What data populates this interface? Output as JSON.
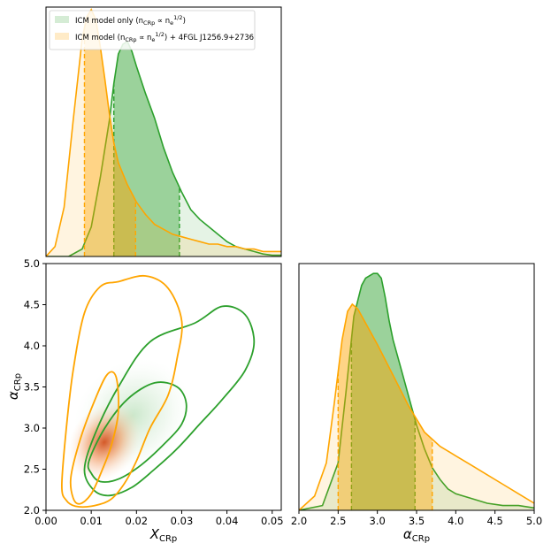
{
  "chart_data": [
    {
      "type": "area",
      "panel": "marginal-x",
      "x_range": [
        0.0,
        0.052
      ],
      "legend": {
        "placement": "top-left",
        "entries": [
          {
            "label": "ICM model only (n_CRp ∝ n_e^1/2)",
            "label_main": "ICM model only (n",
            "label_sub": "CRp",
            "label_mid": " ∝ n",
            "label_sub2": "e",
            "label_sup": "1/2",
            "label_tail": ")",
            "color": "#2ca02c"
          },
          {
            "label": "ICM model (n_CRp ∝ n_e^1/2) + 4FGL J1256.9+2736",
            "label_main": "ICM model (n",
            "label_sub": "CRp",
            "label_mid": " ∝ n",
            "label_sub2": "e",
            "label_sup": "1/2",
            "label_tail": ") + 4FGL J1256.9+2736",
            "color": "#ffa500"
          }
        ]
      },
      "series": [
        {
          "name": "ICM model only",
          "color": "#2ca02c",
          "x": [
            0.0,
            0.005,
            0.008,
            0.01,
            0.012,
            0.014,
            0.015,
            0.016,
            0.017,
            0.018,
            0.019,
            0.02,
            0.022,
            0.024,
            0.026,
            0.028,
            0.03,
            0.032,
            0.034,
            0.036,
            0.038,
            0.04,
            0.042,
            0.044,
            0.046,
            0.048,
            0.05,
            0.052
          ],
          "y": [
            0.0,
            0.0,
            0.03,
            0.12,
            0.32,
            0.55,
            0.7,
            0.82,
            0.86,
            0.87,
            0.83,
            0.77,
            0.66,
            0.56,
            0.44,
            0.34,
            0.26,
            0.19,
            0.15,
            0.12,
            0.09,
            0.06,
            0.04,
            0.03,
            0.02,
            0.01,
            0.005,
            0.005
          ],
          "credible_interval": [
            0.015,
            0.0295
          ]
        },
        {
          "name": "ICM model + 4FGL J1256.9+2736",
          "color": "#ffa500",
          "x": [
            0.0,
            0.002,
            0.004,
            0.006,
            0.008,
            0.009,
            0.01,
            0.011,
            0.012,
            0.013,
            0.014,
            0.015,
            0.016,
            0.018,
            0.02,
            0.022,
            0.024,
            0.026,
            0.028,
            0.03,
            0.032,
            0.034,
            0.036,
            0.038,
            0.04,
            0.042,
            0.044,
            0.046,
            0.048,
            0.05,
            0.052
          ],
          "y": [
            0.0,
            0.04,
            0.2,
            0.55,
            0.88,
            0.97,
            1.0,
            0.96,
            0.85,
            0.72,
            0.58,
            0.46,
            0.38,
            0.29,
            0.22,
            0.17,
            0.13,
            0.11,
            0.09,
            0.08,
            0.07,
            0.06,
            0.05,
            0.05,
            0.04,
            0.04,
            0.03,
            0.03,
            0.02,
            0.02,
            0.02
          ],
          "credible_interval": [
            0.0085,
            0.0198
          ]
        }
      ]
    },
    {
      "type": "area",
      "panel": "marginal-alpha",
      "xlabel": "α_CRp",
      "x_range": [
        2.0,
        5.0
      ],
      "x_ticks": [
        "2.0",
        "2.5",
        "3.0",
        "3.5",
        "4.0",
        "4.5",
        "5.0"
      ],
      "series": [
        {
          "name": "ICM model only",
          "color": "#2ca02c",
          "x": [
            2.0,
            2.3,
            2.5,
            2.6,
            2.7,
            2.8,
            2.85,
            2.9,
            2.95,
            3.0,
            3.05,
            3.1,
            3.15,
            3.2,
            3.3,
            3.4,
            3.5,
            3.6,
            3.7,
            3.8,
            3.9,
            4.0,
            4.2,
            4.4,
            4.6,
            4.8,
            5.0
          ],
          "y": [
            0.0,
            0.02,
            0.2,
            0.5,
            0.82,
            0.95,
            0.98,
            0.99,
            1.0,
            1.0,
            0.98,
            0.9,
            0.8,
            0.72,
            0.6,
            0.48,
            0.36,
            0.26,
            0.18,
            0.13,
            0.09,
            0.07,
            0.05,
            0.03,
            0.02,
            0.02,
            0.01
          ],
          "credible_interval": [
            2.67,
            3.48
          ]
        },
        {
          "name": "ICM model + 4FGL J1256.9+2736",
          "color": "#ffa500",
          "x": [
            2.0,
            2.2,
            2.35,
            2.45,
            2.55,
            2.62,
            2.68,
            2.75,
            2.85,
            3.0,
            3.2,
            3.4,
            3.6,
            3.8,
            4.0,
            4.2,
            4.4,
            4.6,
            4.8,
            5.0
          ],
          "y": [
            0.0,
            0.06,
            0.2,
            0.45,
            0.72,
            0.84,
            0.87,
            0.85,
            0.79,
            0.7,
            0.57,
            0.44,
            0.33,
            0.27,
            0.23,
            0.19,
            0.15,
            0.11,
            0.07,
            0.03
          ],
          "credible_interval": [
            2.5,
            3.7
          ]
        }
      ]
    },
    {
      "type": "scatter",
      "panel": "joint",
      "description_type": "2D credible contours",
      "xlabel": "X_CRp",
      "ylabel": "α_CRp",
      "x_range": [
        0.0,
        0.052
      ],
      "y_range": [
        2.0,
        5.0
      ],
      "x_ticks": [
        "0.00",
        "0.01",
        "0.02",
        "0.03",
        "0.04",
        "0.05"
      ],
      "y_ticks": [
        "2.0",
        "2.5",
        "3.0",
        "3.5",
        "4.0",
        "4.5",
        "5.0"
      ],
      "series": [
        {
          "name": "ICM model only",
          "color": "#2ca02c",
          "contours": [
            {
              "level": "inner",
              "x": [
                0.0095,
                0.013,
                0.018,
                0.024,
                0.029,
                0.031,
                0.03,
                0.026,
                0.021,
                0.016,
                0.012,
                0.01,
                0.0095
              ],
              "y": [
                2.6,
                3.0,
                3.35,
                3.55,
                3.5,
                3.3,
                3.05,
                2.8,
                2.55,
                2.38,
                2.35,
                2.45,
                2.6
              ]
            },
            {
              "level": "outer",
              "x": [
                0.0085,
                0.011,
                0.016,
                0.023,
                0.033,
                0.039,
                0.044,
                0.046,
                0.044,
                0.039,
                0.034,
                0.029,
                0.024,
                0.019,
                0.014,
                0.0105,
                0.0085
              ],
              "y": [
                2.5,
                2.95,
                3.5,
                4.05,
                4.28,
                4.48,
                4.38,
                4.05,
                3.7,
                3.35,
                3.05,
                2.75,
                2.5,
                2.28,
                2.18,
                2.25,
                2.5
              ]
            }
          ]
        },
        {
          "name": "ICM model + 4FGL J1256.9+2736",
          "color": "#ffa500",
          "contours": [
            {
              "level": "inner",
              "x": [
                0.0055,
                0.0075,
                0.0105,
                0.0135,
                0.0155,
                0.016,
                0.0145,
                0.0125,
                0.01,
                0.0075,
                0.006,
                0.0055
              ],
              "y": [
                2.4,
                2.85,
                3.3,
                3.65,
                3.62,
                3.2,
                2.8,
                2.5,
                2.2,
                2.08,
                2.15,
                2.4
              ]
            },
            {
              "level": "outer",
              "x": [
                0.0035,
                0.0045,
                0.006,
                0.0085,
                0.012,
                0.016,
                0.022,
                0.027,
                0.03,
                0.029,
                0.027,
                0.023,
                0.02,
                0.017,
                0.014,
                0.01,
                0.0065,
                0.0045,
                0.0035
              ],
              "y": [
                2.3,
                3.0,
                3.7,
                4.4,
                4.72,
                4.78,
                4.85,
                4.7,
                4.3,
                3.85,
                3.4,
                3.0,
                2.6,
                2.3,
                2.12,
                2.05,
                2.05,
                2.12,
                2.3
              ]
            }
          ]
        }
      ]
    }
  ]
}
